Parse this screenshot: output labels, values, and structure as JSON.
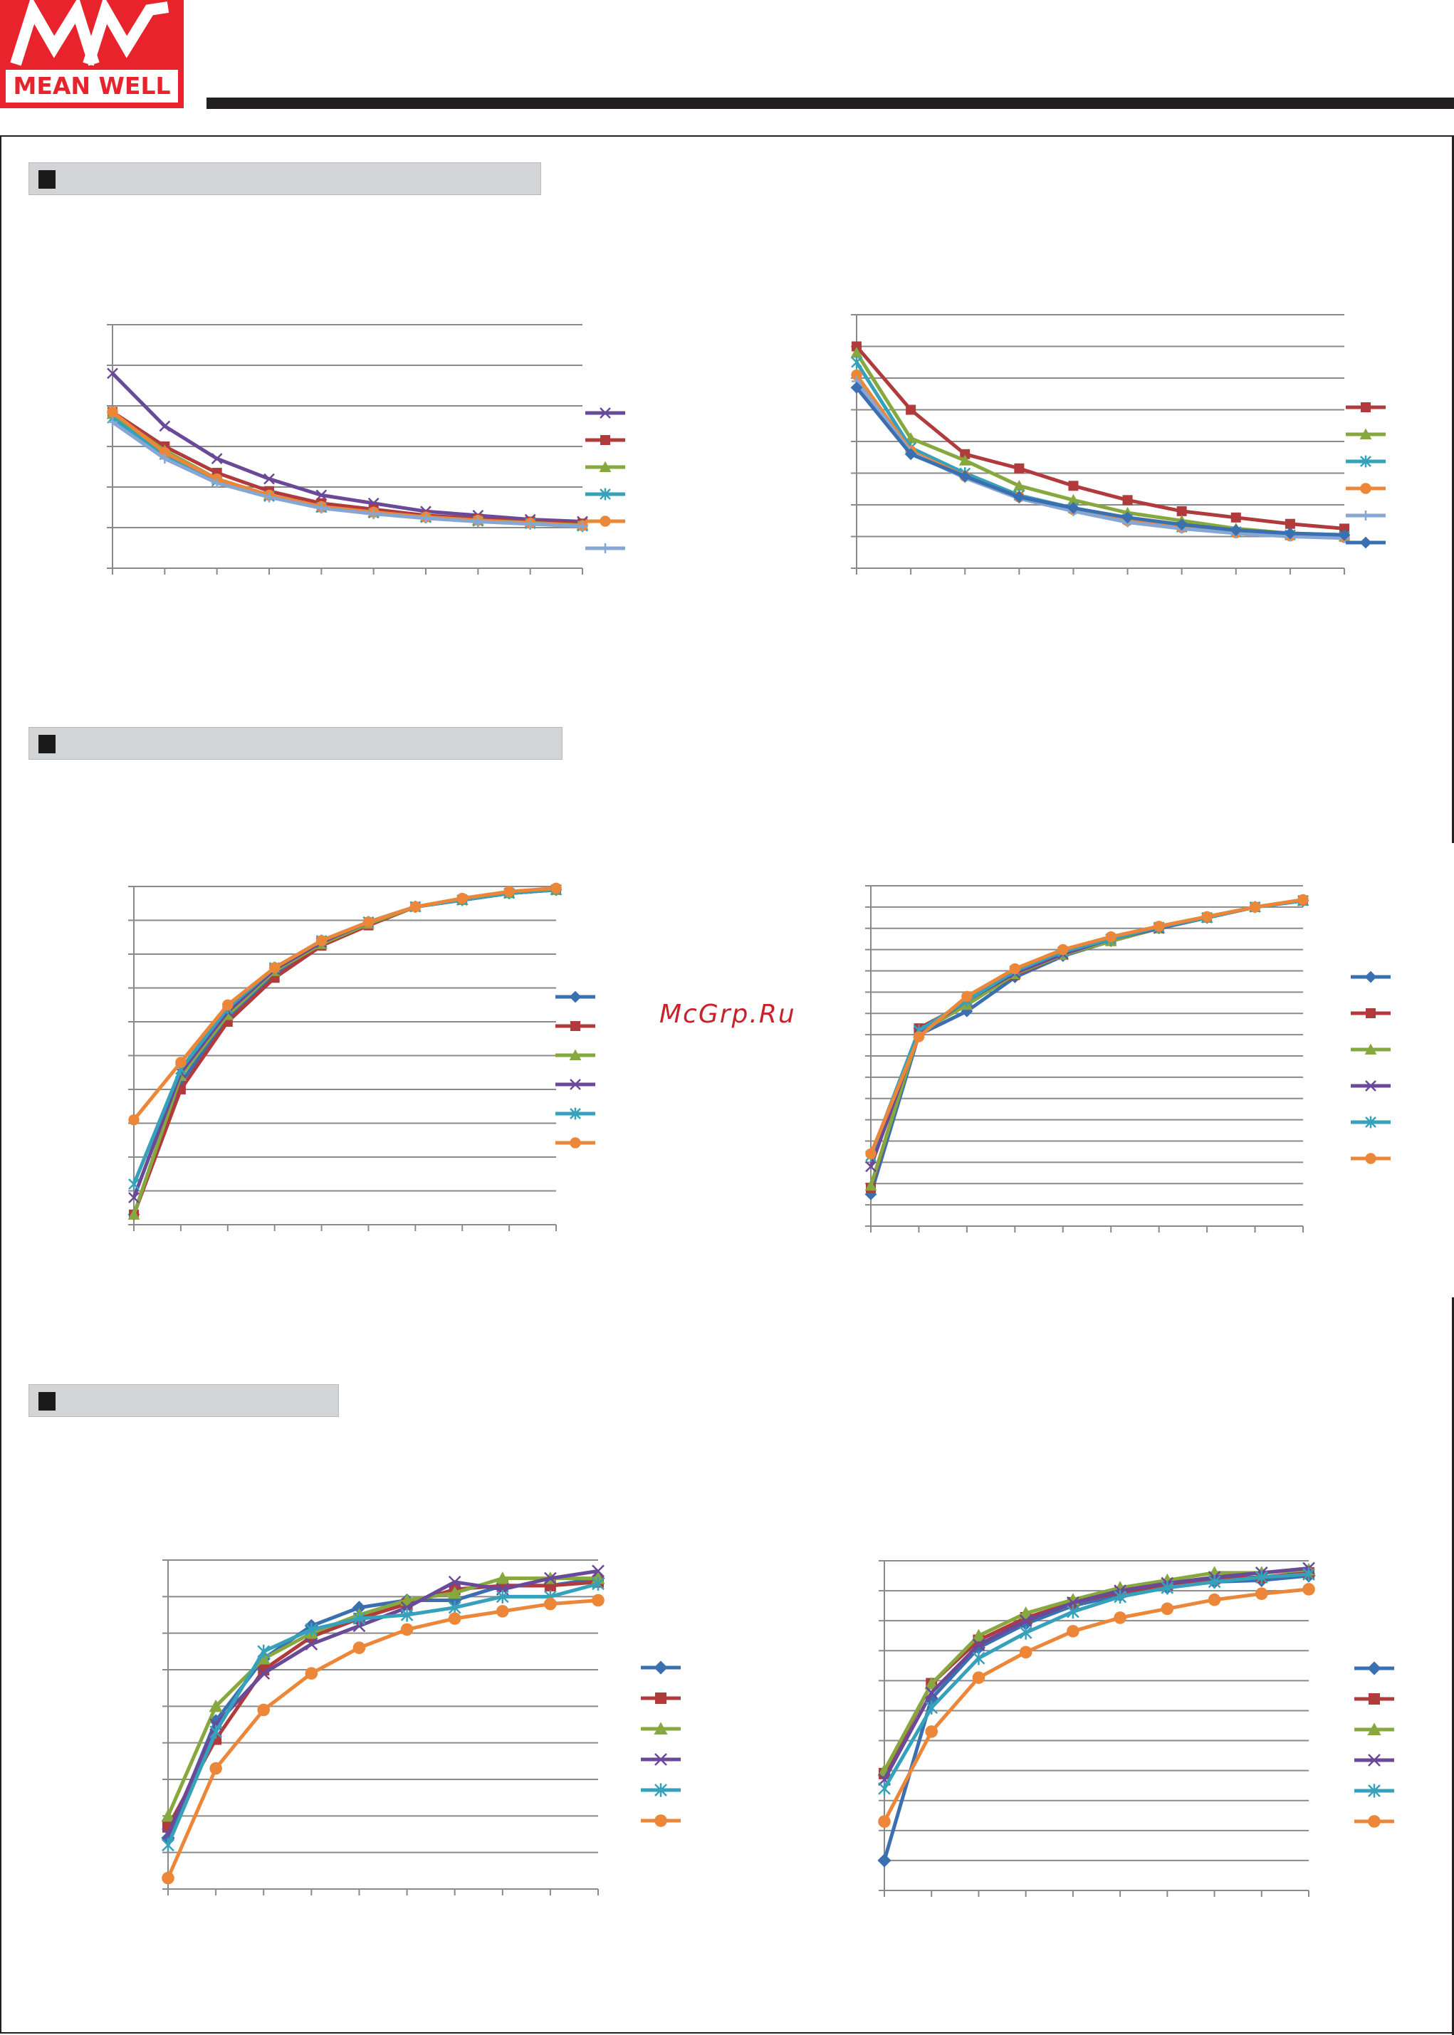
{
  "header": {
    "brand_text": "MEAN WELL",
    "brand_color": "#e8232b"
  },
  "sections": [
    {
      "title": ""
    },
    {
      "title": ""
    },
    {
      "title": ""
    }
  ],
  "watermark": "McGrp.Ru",
  "colors": {
    "blue": "#3a6fb0",
    "red": "#b03a3c",
    "green": "#86a83e",
    "purple": "#6a4a98",
    "teal": "#35a1ba",
    "orange": "#ec873a",
    "lightblue": "#86a6d4"
  },
  "chart_data": [
    {
      "type": "line",
      "x": [
        0,
        1,
        2,
        3,
        4,
        5,
        6,
        7,
        8,
        9
      ],
      "ylim": [
        0,
        6
      ],
      "xlim": [
        0,
        9
      ],
      "grid": true,
      "legend": "right",
      "series": [
        {
          "color": "#6a4a98",
          "marker": "x",
          "values": [
            4.8,
            3.5,
            2.7,
            2.2,
            1.8,
            1.6,
            1.4,
            1.3,
            1.2,
            1.15
          ]
        },
        {
          "color": "#b03a3c",
          "marker": "square",
          "values": [
            3.85,
            3.0,
            2.35,
            1.9,
            1.6,
            1.45,
            1.3,
            1.22,
            1.15,
            1.1
          ]
        },
        {
          "color": "#86a83e",
          "marker": "triangle",
          "values": [
            3.8,
            2.9,
            2.2,
            1.8,
            1.5,
            1.38,
            1.26,
            1.18,
            1.12,
            1.06
          ]
        },
        {
          "color": "#35a1ba",
          "marker": "star",
          "values": [
            3.7,
            2.8,
            2.15,
            1.77,
            1.5,
            1.36,
            1.25,
            1.16,
            1.1,
            1.04
          ]
        },
        {
          "color": "#ec873a",
          "marker": "circle",
          "values": [
            3.85,
            2.85,
            2.2,
            1.8,
            1.52,
            1.38,
            1.26,
            1.18,
            1.11,
            1.05
          ]
        },
        {
          "color": "#86a6d4",
          "marker": "plus",
          "values": [
            3.6,
            2.7,
            2.1,
            1.75,
            1.48,
            1.34,
            1.23,
            1.15,
            1.09,
            1.03
          ]
        }
      ]
    },
    {
      "type": "line",
      "x": [
        0,
        1,
        2,
        3,
        4,
        5,
        6,
        7,
        8,
        9
      ],
      "ylim": [
        0,
        8
      ],
      "xlim": [
        0,
        9
      ],
      "grid": true,
      "legend": "right",
      "series": [
        {
          "color": "#b03a3c",
          "marker": "square",
          "values": [
            7.0,
            5.0,
            3.6,
            3.15,
            2.6,
            2.15,
            1.8,
            1.6,
            1.4,
            1.25
          ]
        },
        {
          "color": "#86a83e",
          "marker": "triangle",
          "values": [
            6.8,
            4.1,
            3.4,
            2.6,
            2.15,
            1.75,
            1.5,
            1.25,
            1.1,
            1.05
          ]
        },
        {
          "color": "#35a1ba",
          "marker": "star",
          "values": [
            6.5,
            3.8,
            3.0,
            2.3,
            1.9,
            1.55,
            1.3,
            1.15,
            1.05,
            1.0
          ]
        },
        {
          "color": "#ec873a",
          "marker": "circle",
          "values": [
            6.1,
            3.7,
            2.9,
            2.25,
            1.85,
            1.5,
            1.28,
            1.12,
            1.02,
            0.97
          ]
        },
        {
          "color": "#86a6d4",
          "marker": "plus",
          "values": [
            5.9,
            3.65,
            2.85,
            2.2,
            1.8,
            1.45,
            1.25,
            1.1,
            1.0,
            0.95
          ]
        },
        {
          "color": "#3a6fb0",
          "marker": "diamond",
          "values": [
            5.7,
            3.6,
            2.9,
            2.25,
            1.9,
            1.6,
            1.38,
            1.2,
            1.1,
            1.05
          ]
        }
      ]
    },
    {
      "type": "line",
      "x": [
        0,
        1,
        2,
        3,
        4,
        5,
        6,
        7,
        8,
        9
      ],
      "ylim": [
        0,
        10
      ],
      "xlim": [
        0,
        9
      ],
      "grid": true,
      "legend": "right",
      "series": [
        {
          "color": "#3a6fb0",
          "marker": "diamond",
          "values": [
            0.3,
            4.2,
            6.1,
            7.4,
            8.3,
            8.9,
            9.4,
            9.6,
            9.8,
            9.9
          ]
        },
        {
          "color": "#b03a3c",
          "marker": "square",
          "values": [
            0.3,
            4.0,
            6.0,
            7.3,
            8.25,
            8.85,
            9.4,
            9.6,
            9.8,
            9.9
          ]
        },
        {
          "color": "#86a83e",
          "marker": "triangle",
          "values": [
            0.3,
            4.4,
            6.2,
            7.5,
            8.3,
            8.9,
            9.4,
            9.6,
            9.8,
            9.9
          ]
        },
        {
          "color": "#6a4a98",
          "marker": "x",
          "values": [
            0.8,
            4.5,
            6.3,
            7.55,
            8.35,
            8.95,
            9.4,
            9.6,
            9.8,
            9.9
          ]
        },
        {
          "color": "#35a1ba",
          "marker": "star",
          "values": [
            1.2,
            4.6,
            6.4,
            7.6,
            8.4,
            8.95,
            9.4,
            9.6,
            9.8,
            9.9
          ]
        },
        {
          "color": "#ec873a",
          "marker": "circle",
          "values": [
            3.1,
            4.8,
            6.5,
            7.6,
            8.4,
            8.95,
            9.4,
            9.65,
            9.85,
            9.95
          ]
        }
      ]
    },
    {
      "type": "line",
      "x": [
        0,
        1,
        2,
        3,
        4,
        5,
        6,
        7,
        8,
        9
      ],
      "ylim": [
        0,
        16
      ],
      "xlim": [
        0,
        9
      ],
      "grid": true,
      "legend": "right",
      "series": [
        {
          "color": "#3a6fb0",
          "marker": "diamond",
          "values": [
            1.5,
            9.0,
            10.1,
            11.7,
            12.7,
            13.4,
            14.0,
            14.5,
            15.0,
            15.3
          ]
        },
        {
          "color": "#b03a3c",
          "marker": "square",
          "values": [
            1.8,
            9.3,
            10.5,
            11.8,
            12.75,
            13.4,
            14.0,
            14.5,
            15.0,
            15.3
          ]
        },
        {
          "color": "#86a83e",
          "marker": "triangle",
          "values": [
            1.9,
            9.1,
            10.4,
            11.85,
            12.75,
            13.4,
            14.0,
            14.5,
            15.0,
            15.3
          ]
        },
        {
          "color": "#6a4a98",
          "marker": "x",
          "values": [
            2.8,
            9.1,
            10.6,
            11.9,
            12.8,
            13.5,
            14.0,
            14.5,
            15.0,
            15.3
          ]
        },
        {
          "color": "#35a1ba",
          "marker": "star",
          "values": [
            3.3,
            9.2,
            10.6,
            12.0,
            12.9,
            13.5,
            14.05,
            14.5,
            15.0,
            15.3
          ]
        },
        {
          "color": "#ec873a",
          "marker": "circle",
          "values": [
            3.4,
            8.9,
            10.8,
            12.1,
            13.0,
            13.6,
            14.1,
            14.55,
            15.0,
            15.35
          ]
        }
      ]
    },
    {
      "type": "line",
      "x": [
        0,
        1,
        2,
        3,
        4,
        5,
        6,
        7,
        8,
        9
      ],
      "ylim": [
        0,
        9
      ],
      "xlim": [
        0,
        9
      ],
      "grid": true,
      "legend": "right",
      "series": [
        {
          "color": "#3a6fb0",
          "marker": "diamond",
          "values": [
            1.4,
            4.6,
            6.3,
            7.2,
            7.7,
            7.9,
            7.9,
            8.3,
            8.3,
            8.5
          ]
        },
        {
          "color": "#b03a3c",
          "marker": "square",
          "values": [
            1.7,
            4.1,
            6.0,
            6.9,
            7.4,
            7.8,
            8.2,
            8.3,
            8.3,
            8.4
          ]
        },
        {
          "color": "#86a83e",
          "marker": "triangle",
          "values": [
            2.0,
            5.0,
            6.3,
            7.0,
            7.5,
            7.9,
            8.1,
            8.5,
            8.5,
            8.5
          ]
        },
        {
          "color": "#6a4a98",
          "marker": "x",
          "values": [
            1.5,
            4.5,
            5.9,
            6.7,
            7.2,
            7.7,
            8.4,
            8.2,
            8.5,
            8.7
          ]
        },
        {
          "color": "#35a1ba",
          "marker": "star",
          "values": [
            1.2,
            4.3,
            6.5,
            7.1,
            7.4,
            7.5,
            7.7,
            8.0,
            8.0,
            8.35
          ]
        },
        {
          "color": "#ec873a",
          "marker": "circle",
          "values": [
            0.3,
            3.3,
            4.9,
            5.9,
            6.6,
            7.1,
            7.4,
            7.6,
            7.8,
            7.9
          ]
        }
      ]
    },
    {
      "type": "line",
      "x": [
        0,
        1,
        2,
        3,
        4,
        5,
        6,
        7,
        8,
        9
      ],
      "ylim": [
        0,
        11
      ],
      "xlim": [
        0,
        9
      ],
      "grid": true,
      "legend": "right",
      "series": [
        {
          "color": "#3a6fb0",
          "marker": "diamond",
          "values": [
            1.0,
            6.4,
            8.1,
            8.9,
            9.5,
            9.85,
            10.1,
            10.3,
            10.35,
            10.5
          ]
        },
        {
          "color": "#b03a3c",
          "marker": "square",
          "values": [
            3.9,
            6.9,
            8.35,
            9.1,
            9.6,
            9.95,
            10.2,
            10.4,
            10.45,
            10.6
          ]
        },
        {
          "color": "#86a83e",
          "marker": "triangle",
          "values": [
            4.0,
            6.9,
            8.5,
            9.25,
            9.7,
            10.1,
            10.35,
            10.6,
            10.6,
            10.7
          ]
        },
        {
          "color": "#6a4a98",
          "marker": "x",
          "values": [
            3.7,
            6.6,
            8.2,
            9.0,
            9.6,
            10.0,
            10.25,
            10.45,
            10.6,
            10.75
          ]
        },
        {
          "color": "#35a1ba",
          "marker": "star",
          "values": [
            3.4,
            6.1,
            7.75,
            8.6,
            9.3,
            9.8,
            10.1,
            10.3,
            10.45,
            10.55
          ]
        },
        {
          "color": "#ec873a",
          "marker": "circle",
          "values": [
            2.3,
            5.3,
            7.1,
            7.95,
            8.65,
            9.1,
            9.4,
            9.7,
            9.9,
            10.05
          ]
        }
      ]
    }
  ]
}
